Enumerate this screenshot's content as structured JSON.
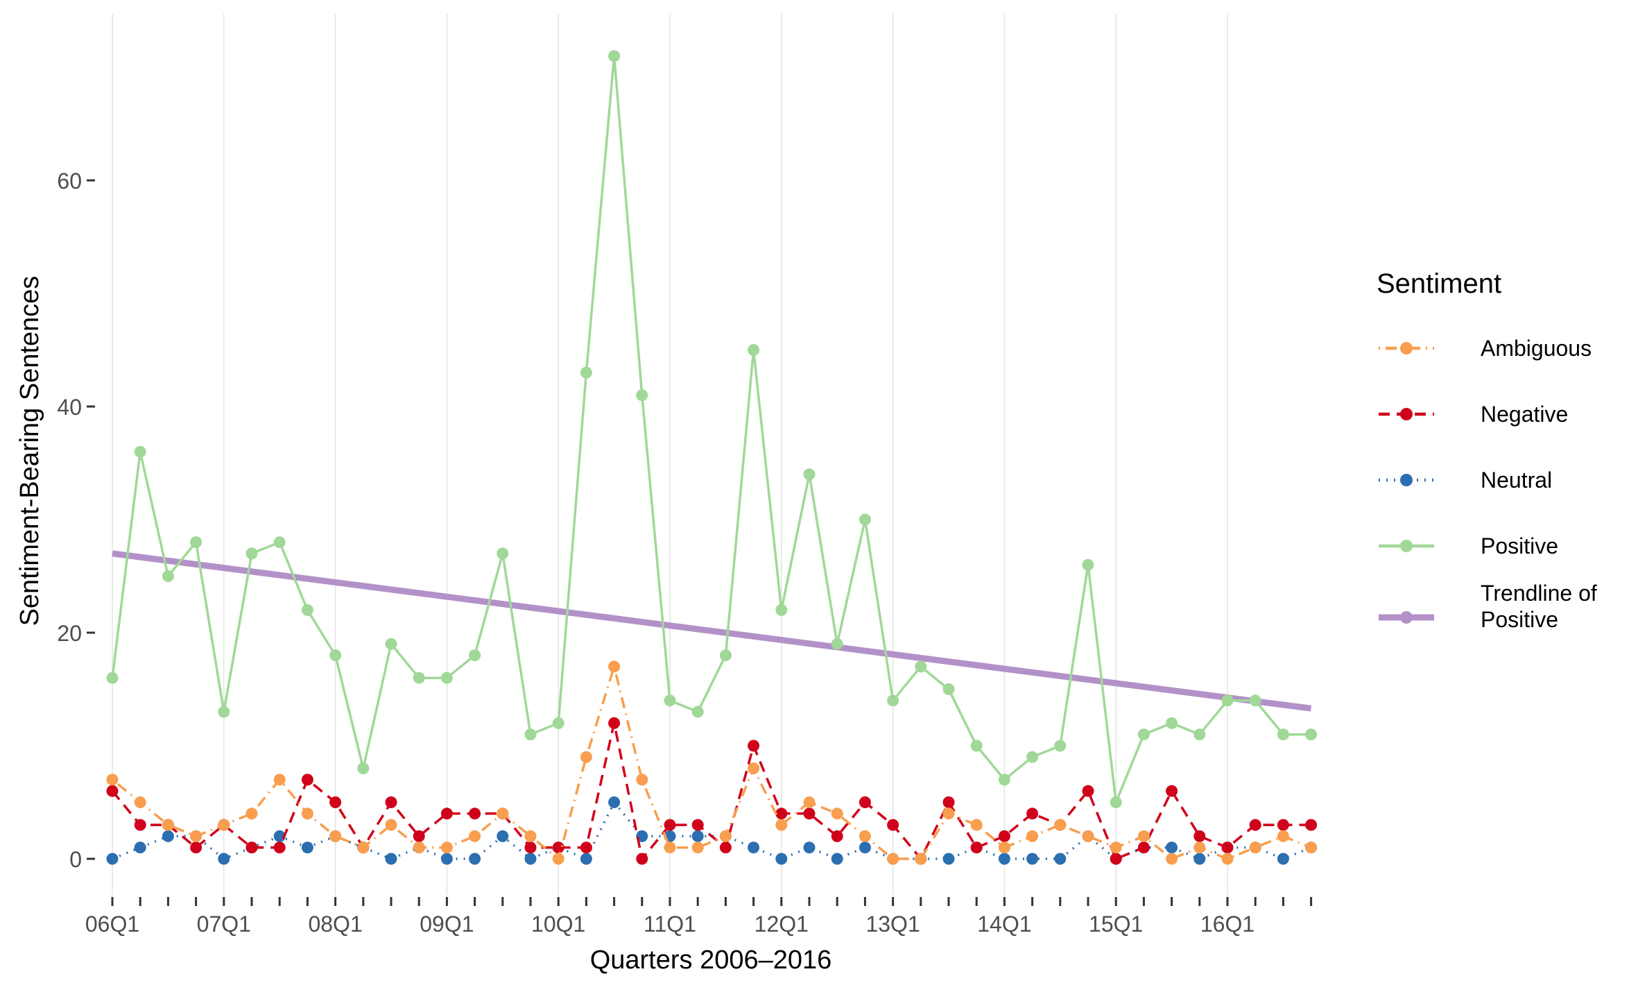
{
  "chart_data": {
    "type": "line",
    "title": "",
    "xlabel": "Quarters 2006–2016",
    "ylabel": "Sentiment-Bearing Sentences",
    "ylim": [
      -3.5,
      72.5
    ],
    "yticks": [
      0,
      20,
      40,
      60
    ],
    "x_tick_labels": [
      "06Q1",
      "07Q1",
      "08Q1",
      "09Q1",
      "10Q1",
      "11Q1",
      "12Q1",
      "13Q1",
      "14Q1",
      "15Q1",
      "16Q1"
    ],
    "n_quarters": 44,
    "grid": "vertical",
    "legend": {
      "title": "Sentiment",
      "position": "right"
    },
    "series": [
      {
        "name": "Ambiguous",
        "color": "#f89e4e",
        "dash": "dotdash",
        "values": [
          7,
          5,
          3,
          2,
          3,
          4,
          7,
          4,
          2,
          1,
          3,
          1,
          1,
          2,
          4,
          2,
          0,
          9,
          17,
          7,
          1,
          1,
          2,
          8,
          3,
          5,
          4,
          2,
          0,
          0,
          4,
          3,
          1,
          2,
          3,
          2,
          1,
          2,
          0,
          1,
          0,
          1,
          2,
          1
        ]
      },
      {
        "name": "Negative",
        "color": "#d0021b",
        "dash": "dashed",
        "values": [
          6,
          3,
          3,
          1,
          3,
          1,
          1,
          7,
          5,
          1,
          5,
          2,
          4,
          4,
          4,
          1,
          1,
          1,
          12,
          0,
          3,
          3,
          1,
          10,
          4,
          4,
          2,
          5,
          3,
          0,
          5,
          1,
          2,
          4,
          3,
          6,
          0,
          1,
          6,
          2,
          1,
          3,
          3,
          3
        ]
      },
      {
        "name": "Neutral",
        "color": "#2b6fb0",
        "dash": "dotted",
        "values": [
          0,
          1,
          2,
          2,
          0,
          1,
          2,
          1,
          2,
          1,
          0,
          1,
          0,
          0,
          2,
          0,
          1,
          0,
          5,
          2,
          2,
          2,
          2,
          1,
          0,
          1,
          0,
          1,
          0,
          0,
          0,
          1,
          0,
          0,
          0,
          2,
          0,
          1,
          1,
          0,
          1,
          1,
          0,
          1
        ]
      },
      {
        "name": "Positive",
        "color": "#a0d897",
        "dash": "solid",
        "values": [
          16,
          36,
          25,
          28,
          13,
          27,
          28,
          22,
          18,
          8,
          19,
          16,
          16,
          18,
          27,
          11,
          12,
          43,
          71,
          41,
          14,
          13,
          18,
          45,
          22,
          34,
          19,
          30,
          14,
          17,
          15,
          10,
          7,
          9,
          10,
          26,
          5,
          11,
          12,
          11,
          14,
          14,
          11,
          11
        ]
      },
      {
        "name": "Trendline of Positive",
        "color": "#b391c8",
        "dash": "solid",
        "trend": true,
        "values": [
          27.0,
          13.3
        ]
      }
    ]
  }
}
